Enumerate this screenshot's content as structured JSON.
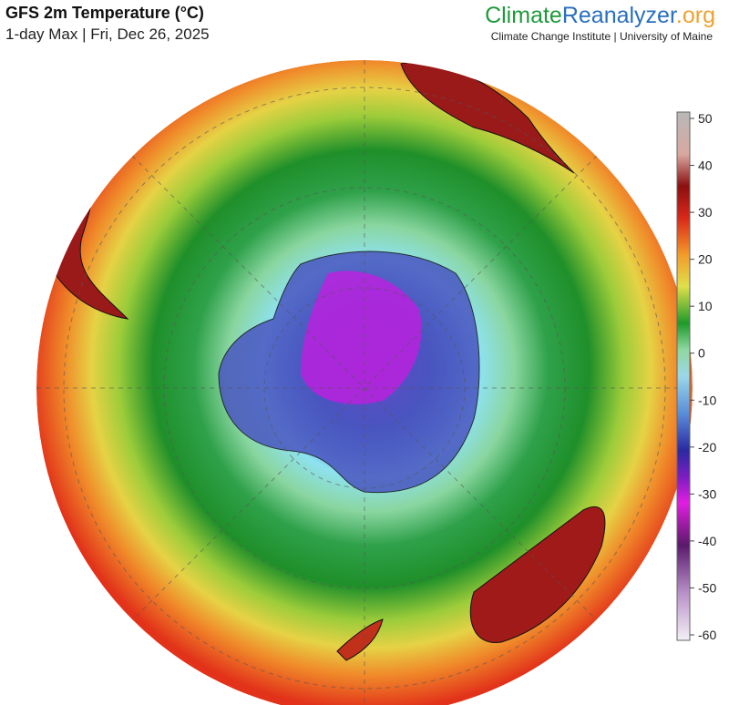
{
  "header": {
    "title": "GFS 2m Temperature (°C)",
    "subtitle": "1-day Max | Fri, Dec 26, 2025"
  },
  "brand": {
    "climate": "Climate",
    "reanalyzer": "Reanalyzer",
    "org": ".org",
    "affiliation": "Climate Change Institute | University of Maine"
  },
  "colorbar": {
    "ticks": [
      50,
      40,
      30,
      20,
      10,
      0,
      -10,
      -20,
      -30,
      -40,
      -50,
      -60
    ]
  }
}
